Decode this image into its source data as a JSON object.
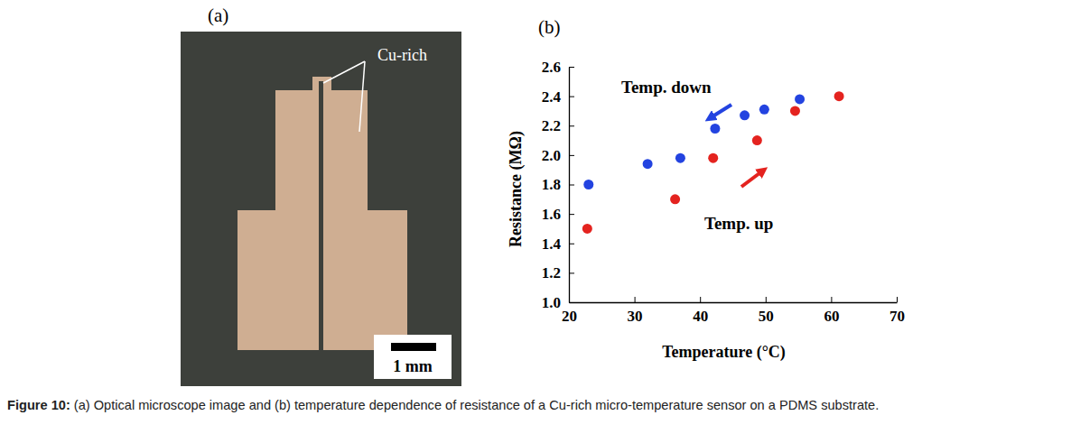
{
  "chart_data": {
    "type": "scatter",
    "x_label": "Temperature (°C)",
    "y_label": "Resistance (MΩ)",
    "xlim": [
      20,
      70
    ],
    "xticks": [
      20,
      30,
      40,
      50,
      60,
      70
    ],
    "ylim": [
      1.0,
      2.6
    ],
    "yticks": [
      {
        "value": 1.0,
        "label": "1.0"
      },
      1.2,
      1.4,
      1.6,
      1.8,
      {
        "value": 2.0,
        "label": "2.0"
      },
      2.2,
      2.4,
      2.6
    ],
    "grid": false,
    "marker": "circle",
    "series": [
      {
        "name": "Temp. down",
        "color": "#2343e0",
        "x": [
          23.0,
          32.0,
          37.0,
          42.3,
          46.8,
          49.8,
          55.2
        ],
        "values": [
          1.8,
          1.94,
          1.98,
          2.18,
          2.27,
          2.31,
          2.38
        ]
      },
      {
        "name": "Temp. up",
        "color": "#e4231f",
        "x": [
          22.8,
          36.2,
          42.0,
          48.7,
          54.5,
          61.2
        ],
        "values": [
          1.5,
          1.7,
          1.98,
          2.1,
          2.3,
          2.4
        ]
      }
    ]
  },
  "figure": {
    "panel_a": "(a)",
    "panel_b": "(b)",
    "image_annotation": "Cu-rich",
    "scale_bar": "1 mm",
    "caption_label": "Figure 10:",
    "caption": "(a) Optical microscope image and (b) temperature dependence of resistance of a Cu-rich micro-temperature sensor on a PDMS substrate."
  }
}
